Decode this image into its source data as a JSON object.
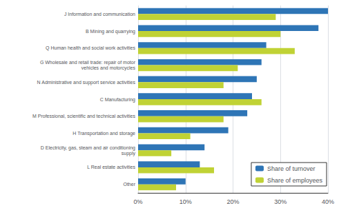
{
  "chart_data": {
    "type": "bar",
    "orientation": "horizontal",
    "categories": [
      "J Information and communication",
      "B Mining and quarrying",
      "Q Human health and social work activities",
      "G Wholesale and retail trade: repair of motor\nvehicles and motorcycles",
      "N Administrative and support service activities",
      "C Manufacturing",
      "M Professional, scientific and technical activities",
      "H Transportation and storage",
      "D Electricity, gas, steam and air conditioning\nsupply",
      "L Real estate activities",
      "Other"
    ],
    "series": [
      {
        "name": "Share of turnover",
        "color": "#2E75B6",
        "values": [
          40,
          38,
          27,
          26,
          25,
          24,
          23,
          19,
          14,
          13,
          10
        ]
      },
      {
        "name": "Share of employees",
        "color": "#C0D235",
        "values": [
          29,
          30,
          33,
          21,
          18,
          26,
          18,
          11,
          7,
          16,
          8
        ]
      }
    ],
    "xlim": [
      0,
      40
    ],
    "xticks": [
      {
        "value": 0,
        "label": "0%"
      },
      {
        "value": 10,
        "label": "10%"
      },
      {
        "value": 20,
        "label": "20%"
      },
      {
        "value": 30,
        "label": "30%"
      },
      {
        "value": 40,
        "label": "40%"
      }
    ],
    "grid": true,
    "legend": "lower right"
  }
}
